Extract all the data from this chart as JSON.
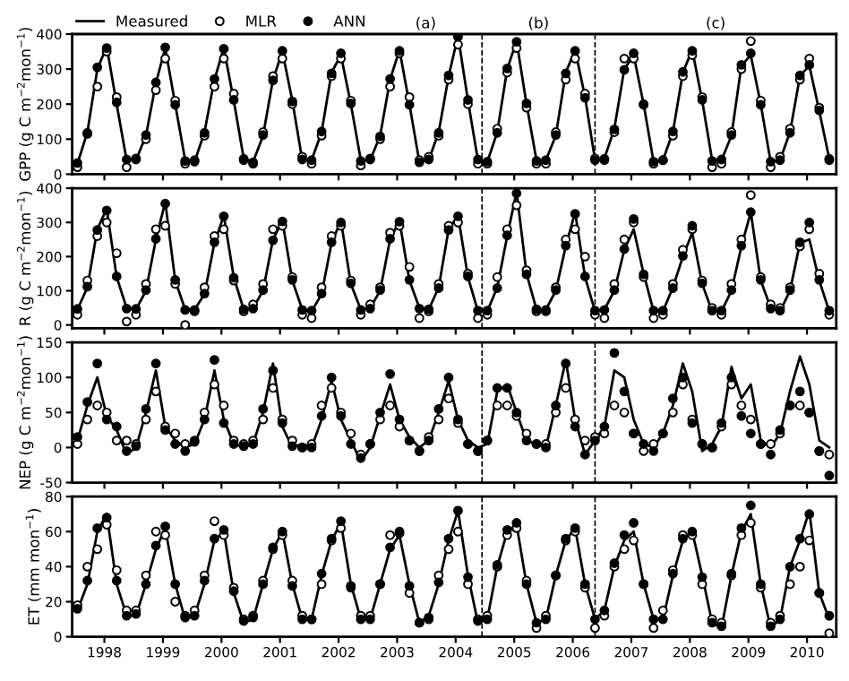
{
  "chart_data": [
    {
      "type": "line",
      "ylabel": "GPP (g C m$^{−2}$mon$^{−1}$)",
      "legend": "top left",
      "tick_labels": "y",
      "annotations": [
        "(a)",
        "(b)",
        "(c)"
      ],
      "xlim": [
        1997.95,
        2011.0
      ],
      "xticks": [
        {
          "value": 1998.5,
          "label": null
        },
        {
          "value": 1999.5,
          "label": null
        },
        {
          "value": 2000.5,
          "label": null
        },
        {
          "value": 2001.5,
          "label": null
        },
        {
          "value": 2002.5,
          "label": null
        },
        {
          "value": 2003.5,
          "label": null
        },
        {
          "value": 2004.5,
          "label": null
        },
        {
          "value": 2005.5,
          "label": null
        },
        {
          "value": 2006.5,
          "label": null
        },
        {
          "value": 2007.5,
          "label": null
        },
        {
          "value": 2008.5,
          "label": null
        },
        {
          "value": 2009.5,
          "label": null
        },
        {
          "value": 2010.5,
          "label": null
        }
      ],
      "ylim": [
        0,
        400
      ],
      "yticks": [
        0,
        100,
        200,
        300,
        400
      ],
      "ref_lines": [
        {
          "axis": "x",
          "value": 2004.95,
          "line_style": "dashed"
        },
        {
          "axis": "x",
          "value": 2006.88,
          "line_style": "dashed"
        }
      ],
      "x": [
        1998.04,
        1998.21,
        1998.38,
        1998.54,
        1998.71,
        1998.88,
        1999.04,
        1999.21,
        1999.38,
        1999.54,
        1999.71,
        1999.88,
        2000.04,
        2000.21,
        2000.38,
        2000.54,
        2000.71,
        2000.88,
        2001.04,
        2001.21,
        2001.38,
        2001.54,
        2001.71,
        2001.88,
        2002.04,
        2002.21,
        2002.38,
        2002.54,
        2002.71,
        2002.88,
        2003.04,
        2003.21,
        2003.38,
        2003.54,
        2003.71,
        2003.88,
        2004.04,
        2004.21,
        2004.38,
        2004.54,
        2004.71,
        2004.88,
        2005.04,
        2005.21,
        2005.38,
        2005.54,
        2005.71,
        2005.88,
        2006.04,
        2006.21,
        2006.38,
        2006.54,
        2006.71,
        2006.88,
        2007.04,
        2007.21,
        2007.38,
        2007.54,
        2007.71,
        2007.88,
        2008.04,
        2008.21,
        2008.38,
        2008.54,
        2008.71,
        2008.88,
        2009.04,
        2009.21,
        2009.38,
        2009.54,
        2009.71,
        2009.88,
        2010.04,
        2010.21,
        2010.38,
        2010.54,
        2010.71,
        2010.88
      ],
      "series": [
        {
          "name": "Measured",
          "color": "#000000",
          "values": [
            30,
            120,
            300,
            365,
            200,
            40,
            40,
            110,
            260,
            360,
            200,
            40,
            35,
            120,
            270,
            360,
            210,
            45,
            35,
            110,
            270,
            350,
            210,
            40,
            40,
            120,
            290,
            340,
            200,
            40,
            40,
            110,
            270,
            355,
            200,
            35,
            40,
            120,
            280,
            395,
            210,
            40,
            35,
            120,
            300,
            380,
            200,
            40,
            40,
            110,
            290,
            355,
            220,
            40,
            45,
            130,
            300,
            340,
            200,
            35,
            40,
            120,
            290,
            355,
            210,
            40,
            40,
            110,
            310,
            340,
            200,
            35,
            40,
            120,
            280,
            310,
            180,
            45
          ]
        },
        {
          "name": "MLR",
          "type": "scatter",
          "marker": "circle",
          "color": "#000000",
          "values": [
            20,
            115,
            250,
            350,
            220,
            20,
            45,
            100,
            240,
            330,
            210,
            30,
            40,
            110,
            250,
            330,
            230,
            40,
            30,
            120,
            280,
            330,
            200,
            50,
            30,
            110,
            280,
            330,
            210,
            25,
            45,
            100,
            250,
            345,
            220,
            40,
            50,
            110,
            270,
            370,
            200,
            30,
            30,
            130,
            290,
            360,
            190,
            30,
            30,
            120,
            270,
            330,
            230,
            45,
            40,
            120,
            330,
            330,
            200,
            30,
            40,
            110,
            280,
            340,
            220,
            20,
            30,
            120,
            300,
            380,
            210,
            20,
            50,
            130,
            270,
            330,
            190,
            40
          ]
        },
        {
          "name": "ANN",
          "type": "scatter",
          "marker": "circle",
          "color": "#000000",
          "values": [
            32,
            118,
            305,
            360,
            205,
            42,
            42,
            112,
            262,
            362,
            198,
            38,
            36,
            118,
            272,
            358,
            212,
            44,
            34,
            112,
            268,
            352,
            208,
            42,
            40,
            122,
            288,
            345,
            202,
            38,
            42,
            108,
            272,
            352,
            198,
            34,
            42,
            118,
            282,
            392,
            212,
            42,
            36,
            118,
            302,
            378,
            202,
            38,
            40,
            112,
            288,
            352,
            218,
            40,
            44,
            128,
            298,
            345,
            198,
            36,
            40,
            122,
            292,
            352,
            212,
            38,
            42,
            112,
            312,
            345,
            198,
            36,
            40,
            118,
            282,
            312,
            182,
            44
          ]
        }
      ]
    },
    {
      "type": "line",
      "ylabel": "R (g C m$^{−2}$mon$^{−1}$)",
      "tick_labels": "y",
      "xlim": [
        1997.95,
        2011.0
      ],
      "xticks": [
        {
          "value": 1998.5,
          "label": null
        },
        {
          "value": 1999.5,
          "label": null
        },
        {
          "value": 2000.5,
          "label": null
        },
        {
          "value": 2001.5,
          "label": null
        },
        {
          "value": 2002.5,
          "label": null
        },
        {
          "value": 2003.5,
          "label": null
        },
        {
          "value": 2004.5,
          "label": null
        },
        {
          "value": 2005.5,
          "label": null
        },
        {
          "value": 2006.5,
          "label": null
        },
        {
          "value": 2007.5,
          "label": null
        },
        {
          "value": 2008.5,
          "label": null
        },
        {
          "value": 2009.5,
          "label": null
        },
        {
          "value": 2010.5,
          "label": null
        }
      ],
      "ylim": [
        -10,
        400
      ],
      "yticks": [
        0,
        100,
        200,
        300,
        400
      ],
      "ref_lines": [
        {
          "axis": "x",
          "value": 2004.95,
          "line_style": "dashed"
        },
        {
          "axis": "x",
          "value": 2006.88,
          "line_style": "dashed"
        }
      ],
      "x": [
        1998.04,
        1998.21,
        1998.38,
        1998.54,
        1998.71,
        1998.88,
        1999.04,
        1999.21,
        1999.38,
        1999.54,
        1999.71,
        1999.88,
        2000.04,
        2000.21,
        2000.38,
        2000.54,
        2000.71,
        2000.88,
        2001.04,
        2001.21,
        2001.38,
        2001.54,
        2001.71,
        2001.88,
        2002.04,
        2002.21,
        2002.38,
        2002.54,
        2002.71,
        2002.88,
        2003.04,
        2003.21,
        2003.38,
        2003.54,
        2003.71,
        2003.88,
        2004.04,
        2004.21,
        2004.38,
        2004.54,
        2004.71,
        2004.88,
        2005.04,
        2005.21,
        2005.38,
        2005.54,
        2005.71,
        2005.88,
        2006.04,
        2006.21,
        2006.38,
        2006.54,
        2006.71,
        2006.88,
        2007.04,
        2007.21,
        2007.38,
        2007.54,
        2007.71,
        2007.88,
        2008.04,
        2008.21,
        2008.38,
        2008.54,
        2008.71,
        2008.88,
        2009.04,
        2009.21,
        2009.38,
        2009.54,
        2009.71,
        2009.88,
        2010.04,
        2010.21,
        2010.38,
        2010.54,
        2010.71,
        2010.88
      ],
      "series": [
        {
          "color": "#000000",
          "values": [
            45,
            110,
            280,
            340,
            140,
            50,
            45,
            100,
            250,
            360,
            130,
            45,
            45,
            90,
            240,
            320,
            140,
            45,
            50,
            100,
            250,
            305,
            130,
            45,
            40,
            90,
            240,
            305,
            120,
            45,
            50,
            100,
            250,
            305,
            130,
            50,
            45,
            110,
            280,
            320,
            140,
            40,
            40,
            110,
            260,
            390,
            150,
            45,
            45,
            100,
            230,
            330,
            140,
            40,
            45,
            100,
            220,
            280,
            150,
            40,
            40,
            110,
            200,
            270,
            120,
            40,
            40,
            100,
            230,
            330,
            130,
            50,
            40,
            100,
            240,
            250,
            130,
            40
          ]
        },
        {
          "type": "scatter",
          "marker": "circle",
          "color": "#000000",
          "values": [
            30,
            130,
            260,
            300,
            210,
            10,
            30,
            120,
            280,
            290,
            120,
            0,
            40,
            110,
            260,
            280,
            130,
            40,
            60,
            120,
            280,
            290,
            140,
            30,
            20,
            110,
            260,
            290,
            130,
            30,
            60,
            110,
            270,
            290,
            170,
            20,
            40,
            120,
            290,
            300,
            150,
            20,
            30,
            140,
            280,
            350,
            160,
            40,
            40,
            110,
            250,
            280,
            200,
            30,
            20,
            120,
            250,
            300,
            140,
            20,
            30,
            120,
            220,
            280,
            130,
            50,
            30,
            120,
            250,
            380,
            140,
            60,
            50,
            110,
            230,
            280,
            150,
            30
          ]
        },
        {
          "type": "scatter",
          "marker": "circle",
          "color": "#000000",
          "values": [
            47,
            112,
            278,
            335,
            142,
            48,
            47,
            102,
            252,
            355,
            132,
            44,
            44,
            92,
            242,
            318,
            138,
            46,
            48,
            102,
            248,
            303,
            132,
            44,
            42,
            92,
            242,
            300,
            122,
            44,
            48,
            102,
            252,
            302,
            132,
            48,
            46,
            108,
            278,
            318,
            142,
            42,
            42,
            108,
            262,
            385,
            148,
            46,
            44,
            102,
            232,
            325,
            142,
            42,
            44,
            102,
            222,
            310,
            148,
            42,
            42,
            108,
            202,
            290,
            122,
            42,
            42,
            102,
            232,
            330,
            132,
            48,
            42,
            102,
            242,
            300,
            132,
            42
          ]
        }
      ]
    },
    {
      "type": "line",
      "ylabel": "NEP (g C m$^{−2}$mon$^{−1}$)",
      "tick_labels": "y",
      "xlim": [
        1997.95,
        2011.0
      ],
      "xticks": [
        {
          "value": 1998.5,
          "label": null
        },
        {
          "value": 1999.5,
          "label": null
        },
        {
          "value": 2000.5,
          "label": null
        },
        {
          "value": 2001.5,
          "label": null
        },
        {
          "value": 2002.5,
          "label": null
        },
        {
          "value": 2003.5,
          "label": null
        },
        {
          "value": 2004.5,
          "label": null
        },
        {
          "value": 2005.5,
          "label": null
        },
        {
          "value": 2006.5,
          "label": null
        },
        {
          "value": 2007.5,
          "label": null
        },
        {
          "value": 2008.5,
          "label": null
        },
        {
          "value": 2009.5,
          "label": null
        },
        {
          "value": 2010.5,
          "label": null
        }
      ],
      "ylim": [
        -50,
        150
      ],
      "yticks": [
        {
          "value": -50,
          "label": "-50"
        },
        0,
        50,
        100,
        150
      ],
      "ref_lines": [
        {
          "axis": "x",
          "value": 2004.95,
          "line_style": "dashed"
        },
        {
          "axis": "x",
          "value": 2006.88,
          "line_style": "dashed"
        }
      ],
      "x": [
        1998.04,
        1998.21,
        1998.38,
        1998.54,
        1998.71,
        1998.88,
        1999.04,
        1999.21,
        1999.38,
        1999.54,
        1999.71,
        1999.88,
        2000.04,
        2000.21,
        2000.38,
        2000.54,
        2000.71,
        2000.88,
        2001.04,
        2001.21,
        2001.38,
        2001.54,
        2001.71,
        2001.88,
        2002.04,
        2002.21,
        2002.38,
        2002.54,
        2002.71,
        2002.88,
        2003.04,
        2003.21,
        2003.38,
        2003.54,
        2003.71,
        2003.88,
        2004.04,
        2004.21,
        2004.38,
        2004.54,
        2004.71,
        2004.88,
        2005.04,
        2005.21,
        2005.38,
        2005.54,
        2005.71,
        2005.88,
        2006.04,
        2006.21,
        2006.38,
        2006.54,
        2006.71,
        2006.88,
        2007.04,
        2007.21,
        2007.38,
        2007.54,
        2007.71,
        2007.88,
        2008.04,
        2008.21,
        2008.38,
        2008.54,
        2008.71,
        2008.88,
        2009.04,
        2009.21,
        2009.38,
        2009.54,
        2009.71,
        2009.88,
        2010.04,
        2010.21,
        2010.38,
        2010.54,
        2010.71,
        2010.88
      ],
      "series": [
        {
          "color": "#000000",
          "values": [
            10,
            60,
            100,
            45,
            25,
            -10,
            0,
            50,
            110,
            30,
            10,
            0,
            5,
            40,
            110,
            40,
            5,
            0,
            5,
            50,
            120,
            30,
            0,
            5,
            0,
            40,
            95,
            40,
            10,
            -20,
            0,
            45,
            90,
            40,
            15,
            0,
            10,
            50,
            95,
            40,
            10,
            0,
            5,
            80,
            90,
            50,
            10,
            5,
            0,
            60,
            125,
            40,
            -10,
            10,
            30,
            110,
            100,
            40,
            5,
            0,
            20,
            60,
            120,
            80,
            -5,
            5,
            30,
            115,
            70,
            90,
            10,
            0,
            20,
            80,
            130,
            90,
            10,
            0
          ]
        },
        {
          "type": "scatter",
          "marker": "circle",
          "color": "#000000",
          "values": [
            5,
            40,
            60,
            50,
            10,
            10,
            5,
            40,
            80,
            30,
            20,
            5,
            10,
            50,
            90,
            60,
            10,
            5,
            10,
            40,
            85,
            40,
            10,
            0,
            5,
            60,
            85,
            50,
            20,
            -10,
            5,
            40,
            60,
            30,
            10,
            -5,
            15,
            40,
            70,
            35,
            5,
            -5,
            10,
            60,
            60,
            45,
            20,
            5,
            5,
            50,
            85,
            40,
            10,
            15,
            20,
            60,
            50,
            20,
            -5,
            5,
            20,
            50,
            90,
            40,
            5,
            0,
            30,
            90,
            60,
            40,
            5,
            5,
            20,
            60,
            60,
            50,
            -5,
            -10
          ]
        },
        {
          "type": "scatter",
          "marker": "circle",
          "color": "#000000",
          "values": [
            15,
            65,
            120,
            40,
            30,
            -5,
            2,
            55,
            120,
            25,
            5,
            -5,
            8,
            40,
            125,
            35,
            5,
            2,
            5,
            55,
            110,
            35,
            2,
            0,
            0,
            45,
            100,
            45,
            5,
            -15,
            5,
            50,
            105,
            40,
            10,
            -5,
            10,
            55,
            100,
            40,
            5,
            -5,
            10,
            85,
            85,
            50,
            10,
            5,
            0,
            60,
            120,
            30,
            -10,
            10,
            30,
            135,
            80,
            20,
            5,
            -5,
            20,
            70,
            100,
            35,
            5,
            0,
            35,
            100,
            45,
            20,
            5,
            -10,
            25,
            60,
            80,
            50,
            -5,
            -40
          ]
        }
      ]
    },
    {
      "type": "line",
      "ylabel": "ET (mm mon$^{−1}$)",
      "xlim": [
        1997.95,
        2011.0
      ],
      "xticks": [
        {
          "value": 1998.5,
          "label": "1998"
        },
        {
          "value": 1999.5,
          "label": "1999"
        },
        {
          "value": 2000.5,
          "label": "2000"
        },
        {
          "value": 2001.5,
          "label": "2001"
        },
        {
          "value": 2002.5,
          "label": "2002"
        },
        {
          "value": 2003.5,
          "label": "2003"
        },
        {
          "value": 2004.5,
          "label": "2004"
        },
        {
          "value": 2005.5,
          "label": "2005"
        },
        {
          "value": 2006.5,
          "label": "2006"
        },
        {
          "value": 2007.5,
          "label": "2007"
        },
        {
          "value": 2008.5,
          "label": "2008"
        },
        {
          "value": 2009.5,
          "label": "2009"
        },
        {
          "value": 2010.5,
          "label": "2010"
        }
      ],
      "ylim": [
        0,
        80
      ],
      "yticks": [
        0,
        20,
        40,
        60,
        80
      ],
      "ref_lines": [
        {
          "axis": "x",
          "value": 2004.95,
          "line_style": "dashed"
        },
        {
          "axis": "x",
          "value": 2006.88,
          "line_style": "dashed"
        }
      ],
      "x": [
        1998.04,
        1998.21,
        1998.38,
        1998.54,
        1998.71,
        1998.88,
        1999.04,
        1999.21,
        1999.38,
        1999.54,
        1999.71,
        1999.88,
        2000.04,
        2000.21,
        2000.38,
        2000.54,
        2000.71,
        2000.88,
        2001.04,
        2001.21,
        2001.38,
        2001.54,
        2001.71,
        2001.88,
        2002.04,
        2002.21,
        2002.38,
        2002.54,
        2002.71,
        2002.88,
        2003.04,
        2003.21,
        2003.38,
        2003.54,
        2003.71,
        2003.88,
        2004.04,
        2004.21,
        2004.38,
        2004.54,
        2004.71,
        2004.88,
        2005.04,
        2005.21,
        2005.38,
        2005.54,
        2005.71,
        2005.88,
        2006.04,
        2006.21,
        2006.38,
        2006.54,
        2006.71,
        2006.88,
        2007.04,
        2007.21,
        2007.38,
        2007.54,
        2007.71,
        2007.88,
        2008.04,
        2008.21,
        2008.38,
        2008.54,
        2008.71,
        2008.88,
        2009.04,
        2009.21,
        2009.38,
        2009.54,
        2009.71,
        2009.88,
        2010.04,
        2010.21,
        2010.38,
        2010.54,
        2010.71,
        2010.88
      ],
      "series": [
        {
          "color": "#000000",
          "values": [
            15,
            30,
            60,
            70,
            30,
            12,
            12,
            30,
            50,
            62,
            30,
            10,
            12,
            30,
            55,
            60,
            25,
            8,
            10,
            30,
            50,
            60,
            30,
            10,
            10,
            35,
            55,
            65,
            30,
            10,
            10,
            30,
            50,
            58,
            30,
            8,
            12,
            30,
            55,
            72,
            35,
            8,
            10,
            40,
            60,
            64,
            30,
            8,
            10,
            35,
            55,
            62,
            30,
            10,
            15,
            40,
            55,
            60,
            30,
            10,
            10,
            35,
            55,
            60,
            35,
            8,
            5,
            35,
            60,
            70,
            30,
            5,
            10,
            40,
            55,
            72,
            25,
            10
          ]
        },
        {
          "type": "scatter",
          "marker": "circle",
          "color": "#000000",
          "values": [
            18,
            40,
            50,
            64,
            38,
            15,
            15,
            35,
            60,
            58,
            20,
            12,
            15,
            35,
            66,
            58,
            28,
            10,
            12,
            32,
            50,
            58,
            32,
            12,
            10,
            30,
            55,
            62,
            28,
            12,
            12,
            30,
            58,
            60,
            25,
            8,
            10,
            35,
            50,
            60,
            30,
            10,
            12,
            40,
            58,
            62,
            32,
            5,
            12,
            35,
            55,
            60,
            28,
            5,
            12,
            40,
            50,
            55,
            30,
            5,
            15,
            38,
            58,
            58,
            30,
            10,
            8,
            35,
            58,
            65,
            28,
            8,
            12,
            30,
            40,
            55,
            25,
            2
          ]
        },
        {
          "type": "scatter",
          "marker": "circle",
          "color": "#000000",
          "values": [
            16,
            32,
            62,
            68,
            32,
            12,
            13,
            30,
            52,
            63,
            30,
            11,
            12,
            32,
            56,
            61,
            26,
            9,
            11,
            30,
            51,
            60,
            29,
            10,
            10,
            36,
            56,
            66,
            29,
            10,
            10,
            30,
            51,
            59,
            29,
            8,
            11,
            31,
            56,
            72,
            34,
            9,
            10,
            41,
            61,
            65,
            30,
            8,
            10,
            35,
            56,
            62,
            30,
            10,
            15,
            42,
            58,
            65,
            30,
            10,
            10,
            36,
            56,
            60,
            34,
            8,
            6,
            36,
            62,
            75,
            30,
            6,
            10,
            40,
            56,
            70,
            25,
            12
          ]
        }
      ]
    }
  ]
}
